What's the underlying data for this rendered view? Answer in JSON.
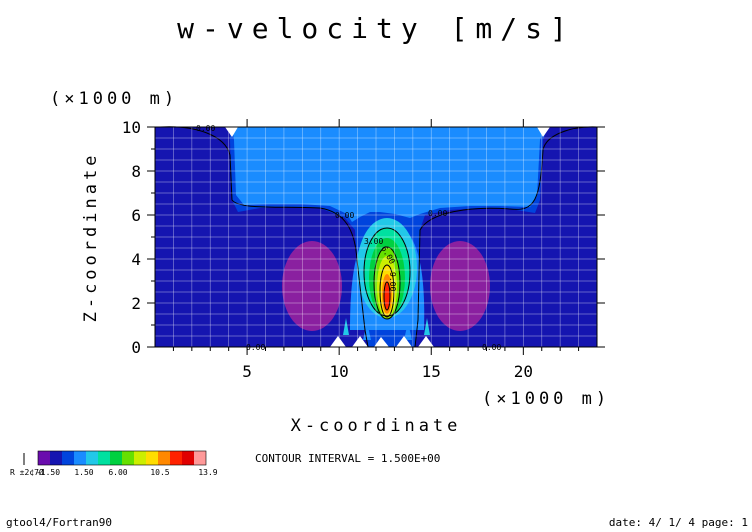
{
  "chart_data": {
    "type": "contour",
    "title": "w-velocity [m/s]",
    "xlabel": "X-coordinate",
    "ylabel": "Z-coordinate",
    "x_unit": "(×1000 m)",
    "y_unit": "(×1000 m)",
    "xlim": [
      0,
      24
    ],
    "ylim": [
      0,
      10
    ],
    "x_ticks": [
      5,
      10,
      15,
      20
    ],
    "x_tick_labels": [
      "5",
      "10",
      "15",
      "20"
    ],
    "y_ticks": [
      0,
      2,
      4,
      6,
      8,
      10
    ],
    "y_tick_labels": [
      "0",
      "2",
      "4",
      "6",
      "8",
      "10"
    ],
    "grid": true,
    "contour_interval_text": "CONTOUR INTERVAL = 1.500E+00",
    "contour_labels": [
      "0.00",
      "0.00",
      "0.00",
      "0.00",
      "0.00",
      "3.00",
      "6.00",
      "9.00"
    ],
    "colorbar": {
      "colors": [
        "#6a0dad",
        "#1515b0",
        "#0044dd",
        "#1a8cff",
        "#22c8e8",
        "#00e0a0",
        "#00d040",
        "#66e000",
        "#ccee00",
        "#ffdd00",
        "#ff8800",
        "#ff2200",
        "#e00000",
        "#ff9999"
      ],
      "tick_labels": [
        "-1.50",
        "1.50",
        "6.00",
        "10.5",
        "13.9"
      ],
      "start_label": "R  ±2¢7Ø"
    }
  },
  "footer": {
    "left": "gtool4/Fortran90",
    "right": "date: 4/ 1/ 4 page: 1"
  }
}
